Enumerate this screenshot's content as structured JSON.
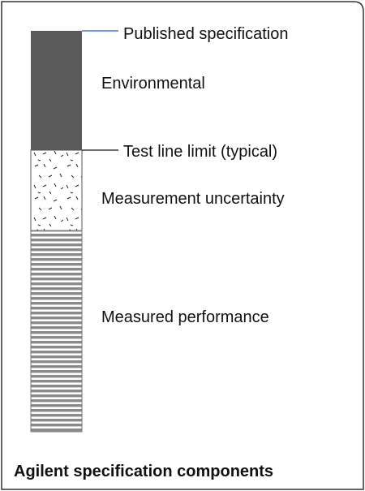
{
  "callouts": [
    "Published specification",
    "Test line limit (typical)"
  ],
  "regions": [
    "Environmental",
    "Measurement uncertainty",
    "Measured performance"
  ],
  "caption": "Agilent specification components"
}
